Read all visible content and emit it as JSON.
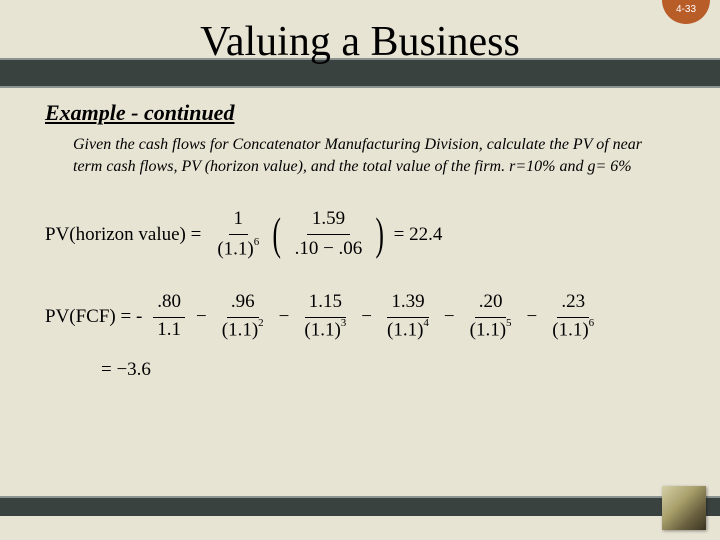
{
  "page_number": "4-33",
  "title": "Valuing a Business",
  "subtitle": "Example - continued",
  "body_text": "Given the cash flows for Concatenator Manufacturing Division, calculate the PV of near term cash flows, PV (horizon value), and the total value of the firm. r=10% and g= 6%",
  "eq1": {
    "label": "PV(horizon value) =",
    "f1_num": "1",
    "f1_den_base": "(1.1)",
    "f1_den_exp": "6",
    "f2_num": "1.59",
    "f2_den": ".10 − .06",
    "result": "= 22.4"
  },
  "eq2": {
    "label": "PV(FCF) = -",
    "t1_num": ".80",
    "t1_den": "1.1",
    "t2_num": ".96",
    "t2_den_base": "(1.1)",
    "t2_exp": "2",
    "t3_num": "1.15",
    "t3_den_base": "(1.1)",
    "t3_exp": "3",
    "t4_num": "1.39",
    "t4_den_base": "(1.1)",
    "t4_exp": "4",
    "t5_num": ".20",
    "t5_den_base": "(1.1)",
    "t5_exp": "5",
    "t6_num": ".23",
    "t6_den_base": "(1.1)",
    "t6_exp": "6"
  },
  "eq3": "= −3.6",
  "colors": {
    "background": "#e8e4d4",
    "band": "#3a4240",
    "band_border": "#8b9490",
    "badge": "#b85c28"
  }
}
